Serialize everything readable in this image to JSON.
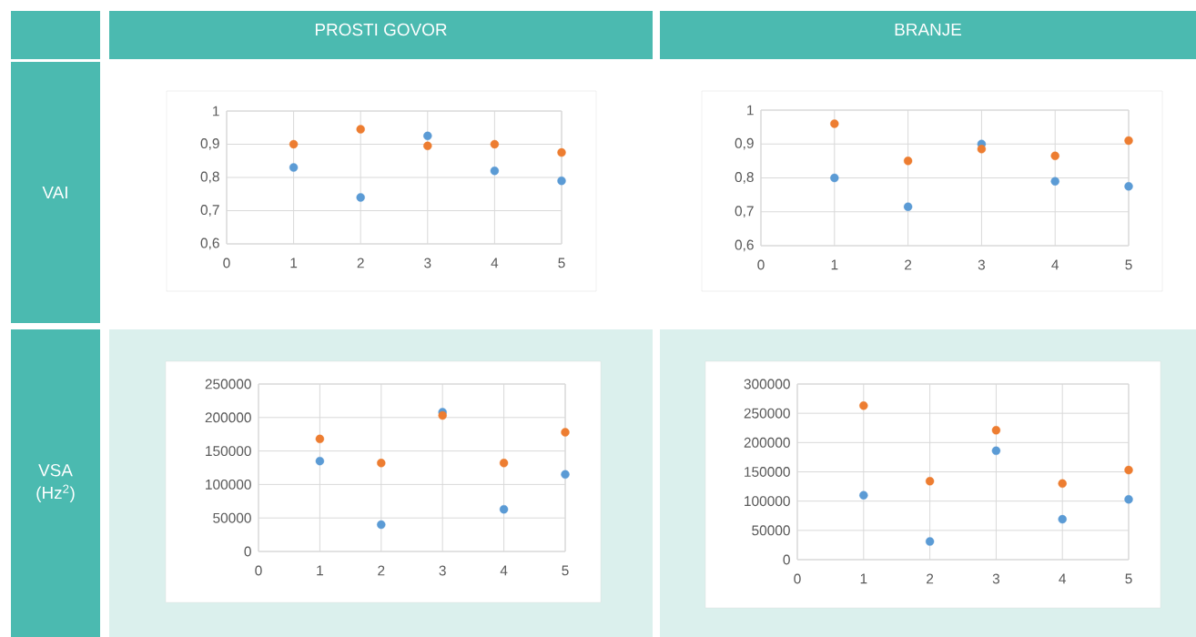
{
  "chart_data": [
    {
      "type": "scatter",
      "title": "PROSTI GOVOR",
      "ylabel": "VAI",
      "marker": "circle",
      "grid": true,
      "xlim": [
        0,
        5
      ],
      "xticks": [
        0,
        1,
        2,
        3,
        4,
        5
      ],
      "ylim": [
        0.6,
        1
      ],
      "yticks": [
        {
          "value": 0.6,
          "label": "0,6"
        },
        {
          "value": 0.7,
          "label": "0,7"
        },
        {
          "value": 0.8,
          "label": "0,8"
        },
        {
          "value": 0.9,
          "label": "0,9"
        },
        1
      ],
      "x": [
        1,
        2,
        3,
        4,
        5
      ],
      "series": [
        {
          "color": "#5b9bd5",
          "values": [
            0.83,
            0.74,
            0.925,
            0.82,
            0.79
          ]
        },
        {
          "color": "#ed7d31",
          "values": [
            0.9,
            0.945,
            0.895,
            0.9,
            0.875
          ]
        }
      ]
    },
    {
      "type": "scatter",
      "title": "BRANJE",
      "marker": "circle",
      "grid": true,
      "xlim": [
        0,
        5
      ],
      "xticks": [
        0,
        1,
        2,
        3,
        4,
        5
      ],
      "ylim": [
        0.6,
        1
      ],
      "yticks": [
        {
          "value": 0.6,
          "label": "0,6"
        },
        {
          "value": 0.7,
          "label": "0,7"
        },
        {
          "value": 0.8,
          "label": "0,8"
        },
        {
          "value": 0.9,
          "label": "0,9"
        },
        1
      ],
      "x": [
        1,
        2,
        3,
        4,
        5
      ],
      "series": [
        {
          "color": "#5b9bd5",
          "values": [
            0.8,
            0.715,
            0.9,
            0.79,
            0.775
          ]
        },
        {
          "color": "#ed7d31",
          "values": [
            0.96,
            0.85,
            0.885,
            0.865,
            0.91
          ]
        }
      ]
    },
    {
      "type": "scatter",
      "ylabel": "VSA (Hz$^{2}$)",
      "marker": "circle",
      "grid": true,
      "xlim": [
        0,
        5
      ],
      "xticks": [
        0,
        1,
        2,
        3,
        4,
        5
      ],
      "ylim": [
        0,
        250000
      ],
      "yticks": [
        0,
        50000,
        100000,
        150000,
        200000,
        250000
      ],
      "x": [
        1,
        2,
        3,
        4,
        5
      ],
      "series": [
        {
          "color": "#5b9bd5",
          "values": [
            135000,
            40000,
            208000,
            63000,
            115000
          ]
        },
        {
          "color": "#ed7d31",
          "values": [
            168000,
            132000,
            203000,
            132000,
            178000
          ]
        }
      ]
    },
    {
      "type": "scatter",
      "marker": "circle",
      "grid": true,
      "xlim": [
        0,
        5
      ],
      "xticks": [
        0,
        1,
        2,
        3,
        4,
        5
      ],
      "ylim": [
        0,
        300000
      ],
      "yticks": [
        0,
        50000,
        100000,
        150000,
        200000,
        250000,
        300000
      ],
      "x": [
        1,
        2,
        3,
        4,
        5
      ],
      "series": [
        {
          "color": "#5b9bd5",
          "values": [
            110000,
            31000,
            186000,
            69000,
            103000
          ]
        },
        {
          "color": "#ed7d31",
          "values": [
            263000,
            134000,
            221000,
            130000,
            153000
          ]
        }
      ]
    }
  ]
}
